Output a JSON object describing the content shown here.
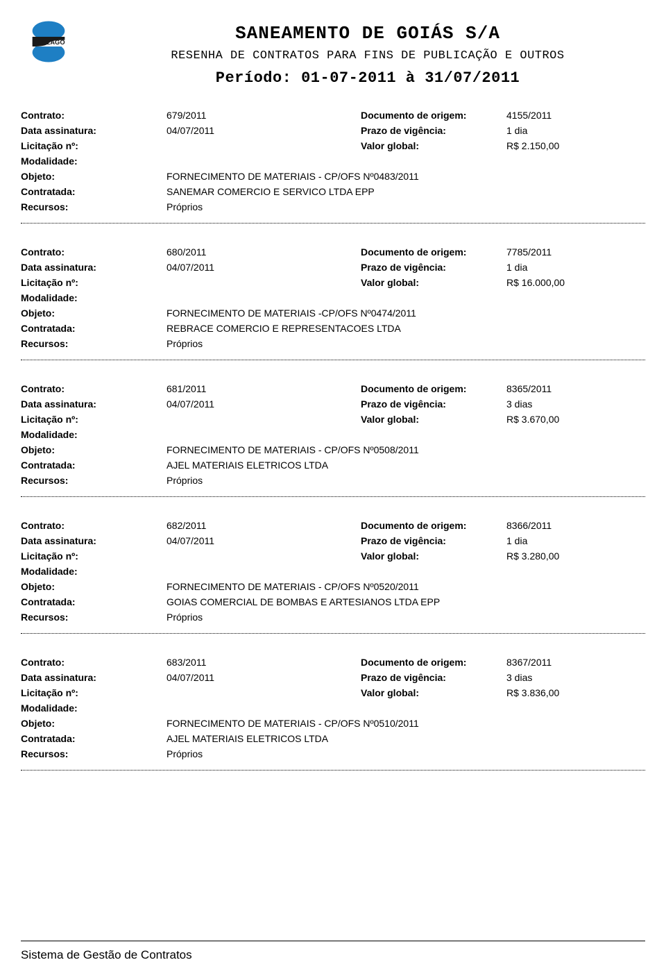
{
  "header": {
    "company": "SANEAMENTO DE GOIÁS S/A",
    "subtitle": "RESENHA DE CONTRATOS PARA FINS DE PUBLICAÇÃO E OUTROS",
    "periodo": "Período: 01-07-2011 à 31/07/2011",
    "logo_text": "SANEAGO",
    "logo_color_blue": "#1e7fc4",
    "logo_color_dark": "#1a1a1a"
  },
  "labels": {
    "contrato": "Contrato:",
    "documento": "Documento de origem:",
    "data_assinatura": "Data assinatura:",
    "prazo": "Prazo de vigência:",
    "licitacao": "Licitação nº:",
    "valor": "Valor global:",
    "modalidade": "Modalidade:",
    "objeto": "Objeto:",
    "contratada": "Contratada:",
    "recursos": "Recursos:"
  },
  "contracts": [
    {
      "contrato": "679/2011",
      "documento": "4155/2011",
      "data": "04/07/2011",
      "prazo": "1 dia",
      "licitacao": "",
      "valor": "R$ 2.150,00",
      "modalidade": "",
      "objeto": "FORNECIMENTO DE MATERIAIS - CP/OFS Nº0483/2011",
      "contratada": "SANEMAR COMERCIO E SERVICO LTDA EPP",
      "recursos": "Próprios"
    },
    {
      "contrato": "680/2011",
      "documento": "7785/2011",
      "data": "04/07/2011",
      "prazo": "1 dia",
      "licitacao": "",
      "valor": "R$ 16.000,00",
      "modalidade": "",
      "objeto": "FORNECIMENTO DE MATERIAIS -CP/OFS Nº0474/2011",
      "contratada": "REBRACE COMERCIO E REPRESENTACOES LTDA",
      "recursos": "Próprios"
    },
    {
      "contrato": "681/2011",
      "documento": "8365/2011",
      "data": "04/07/2011",
      "prazo": "3 dias",
      "licitacao": "",
      "valor": "R$ 3.670,00",
      "modalidade": "",
      "objeto": "FORNECIMENTO DE MATERIAIS - CP/OFS Nº0508/2011",
      "contratada": "AJEL MATERIAIS ELETRICOS LTDA",
      "recursos": "Próprios"
    },
    {
      "contrato": "682/2011",
      "documento": "8366/2011",
      "data": "04/07/2011",
      "prazo": "1 dia",
      "licitacao": "",
      "valor": "R$ 3.280,00",
      "modalidade": "",
      "objeto": "FORNECIMENTO DE MATERIAIS - CP/OFS Nº0520/2011",
      "contratada": "GOIAS COMERCIAL DE BOMBAS E ARTESIANOS LTDA EPP",
      "recursos": "Próprios"
    },
    {
      "contrato": "683/2011",
      "documento": "8367/2011",
      "data": "04/07/2011",
      "prazo": "3 dias",
      "licitacao": "",
      "valor": "R$ 3.836,00",
      "modalidade": "",
      "objeto": "FORNECIMENTO DE MATERIAIS - CP/OFS Nº0510/2011",
      "contratada": "AJEL MATERIAIS ELETRICOS LTDA",
      "recursos": "Próprios"
    }
  ],
  "footer": "Sistema de Gestão de Contratos"
}
